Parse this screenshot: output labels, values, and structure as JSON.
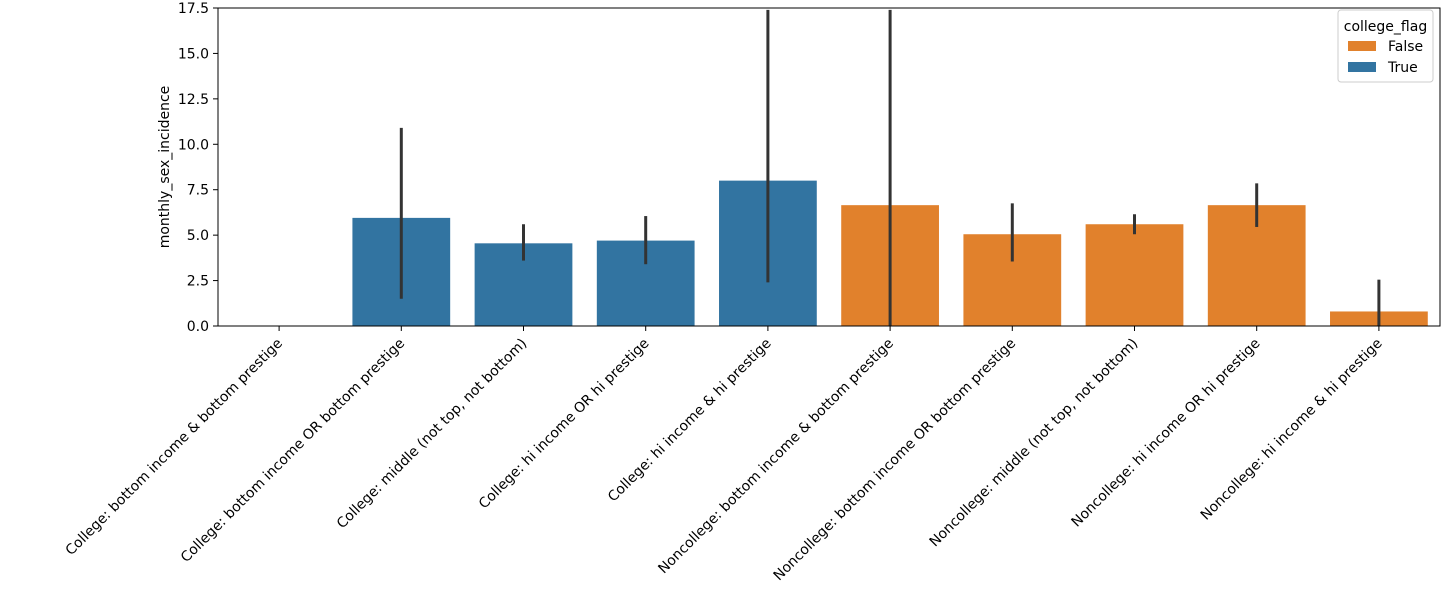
{
  "chart_data": {
    "type": "bar",
    "title": "",
    "xlabel": "",
    "ylabel": "monthly_sex_incidence",
    "ylim": [
      0,
      17.5
    ],
    "yticks": [
      0.0,
      2.5,
      5.0,
      7.5,
      10.0,
      12.5,
      15.0,
      17.5
    ],
    "ytick_labels": [
      "0.0",
      "2.5",
      "5.0",
      "7.5",
      "10.0",
      "12.5",
      "15.0",
      "17.5"
    ],
    "categories": [
      "College: bottom income & bottom prestige",
      "College: bottom income OR bottom prestige",
      "College: middle (not top, not bottom)",
      "College: hi income OR hi prestige",
      "College: hi income & hi prestige",
      "Noncollege: bottom income & bottom prestige",
      "Noncollege: bottom income OR bottom prestige",
      "Noncollege: middle (not top, not bottom)",
      "Noncollege: hi income OR hi prestige",
      "Noncollege: hi income & hi prestige"
    ],
    "bars": [
      {
        "category": "College: bottom income & bottom prestige",
        "series": "True",
        "value": 0.0,
        "ci": [
          0.0,
          0.0
        ]
      },
      {
        "category": "College: bottom income OR bottom prestige",
        "series": "True",
        "value": 5.95,
        "ci": [
          1.5,
          10.9
        ]
      },
      {
        "category": "College: middle (not top, not bottom)",
        "series": "True",
        "value": 4.55,
        "ci": [
          3.6,
          5.6
        ]
      },
      {
        "category": "College: hi income OR hi prestige",
        "series": "True",
        "value": 4.7,
        "ci": [
          3.4,
          6.05
        ]
      },
      {
        "category": "College: hi income & hi prestige",
        "series": "True",
        "value": 8.0,
        "ci": [
          2.4,
          17.4
        ]
      },
      {
        "category": "Noncollege: bottom income & bottom prestige",
        "series": "False",
        "value": 6.65,
        "ci": [
          0.0,
          17.4
        ]
      },
      {
        "category": "Noncollege: bottom income OR bottom prestige",
        "series": "False",
        "value": 5.05,
        "ci": [
          3.55,
          6.75
        ]
      },
      {
        "category": "Noncollege: middle (not top, not bottom)",
        "series": "False",
        "value": 5.6,
        "ci": [
          5.05,
          6.15
        ]
      },
      {
        "category": "Noncollege: hi income OR hi prestige",
        "series": "False",
        "value": 6.65,
        "ci": [
          5.45,
          7.85
        ]
      },
      {
        "category": "Noncollege: hi income & hi prestige",
        "series": "False",
        "value": 0.8,
        "ci": [
          0.0,
          2.55
        ]
      }
    ],
    "legend": {
      "title": "college_flag",
      "placement": "top-right",
      "entries": [
        {
          "label": "False",
          "color": "#e1812c"
        },
        {
          "label": "True",
          "color": "#3274a1"
        }
      ]
    },
    "colors": {
      "False": "#e1812c",
      "True": "#3274a1",
      "errorbar": "#333333"
    },
    "grid": false
  }
}
